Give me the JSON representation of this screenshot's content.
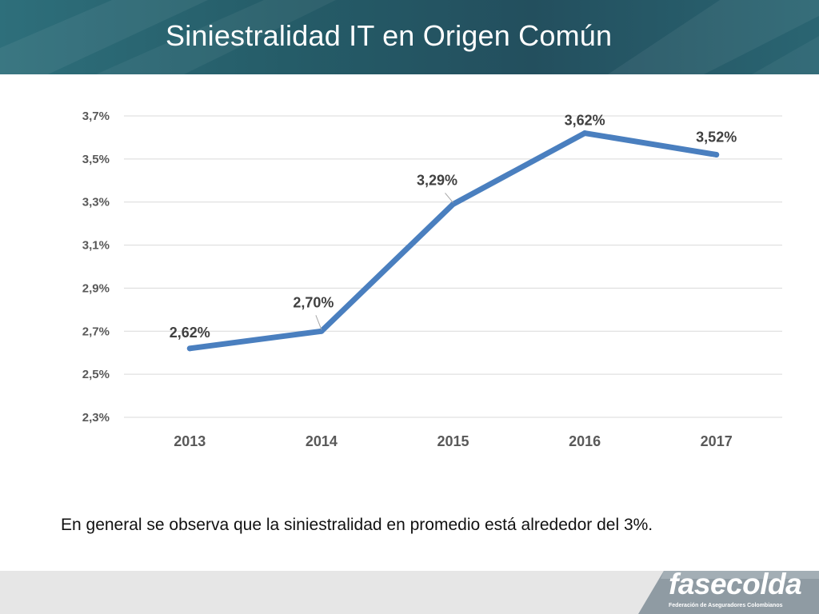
{
  "header": {
    "title": "Siniestralidad IT en Origen Común",
    "bg_color": "#2b6471"
  },
  "chart_data": {
    "type": "line",
    "categories": [
      "2013",
      "2014",
      "2015",
      "2016",
      "2017"
    ],
    "series": [
      {
        "values": [
          2.62,
          2.7,
          3.29,
          3.62,
          3.52
        ],
        "color": "#4a7fbf"
      }
    ],
    "data_labels": [
      "2,62%",
      "2,70%",
      "3,29%",
      "3,62%",
      "3,52%"
    ],
    "y_ticks": [
      2.3,
      2.5,
      2.7,
      2.9,
      3.1,
      3.3,
      3.5,
      3.7
    ],
    "y_tick_labels": [
      "2,3%",
      "2,5%",
      "2,7%",
      "2,9%",
      "3,1%",
      "3,3%",
      "3,5%",
      "3,7%"
    ],
    "ylim": [
      2.3,
      3.7
    ],
    "grid": true,
    "legend": "none"
  },
  "note": "En general se observa que la siniestralidad en promedio está alrededor del 3%.",
  "footer": {
    "logo_text": "fasecolda",
    "logo_subtitle": "Federación de Aseguradores Colombianos"
  }
}
